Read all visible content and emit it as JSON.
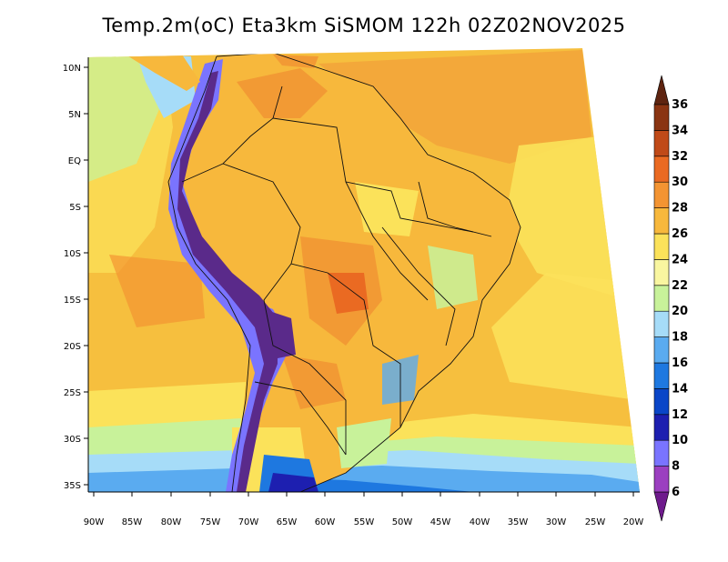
{
  "title": "Temp.2m(oC) Eta3km SiSMOM 122h 02Z02NOV2025",
  "map": {
    "lat_labels": [
      "10N",
      "5N",
      "EQ",
      "5S",
      "10S",
      "15S",
      "20S",
      "25S",
      "30S",
      "35S"
    ],
    "lon_labels": [
      "90W",
      "85W",
      "80W",
      "75W",
      "70W",
      "65W",
      "60W",
      "55W",
      "50W",
      "45W",
      "40W",
      "35W",
      "30W",
      "25W",
      "20W"
    ],
    "lat_range": [
      -38,
      11
    ],
    "lon_range": [
      -91,
      -20
    ]
  },
  "colorbar": {
    "unit": "oC",
    "levels": [
      "6",
      "8",
      "10",
      "12",
      "14",
      "16",
      "18",
      "20",
      "22",
      "24",
      "26",
      "28",
      "30",
      "32",
      "34",
      "36"
    ],
    "colors": [
      "#6e1a8c",
      "#9b3fc0",
      "#7a74ff",
      "#1d1fb0",
      "#0a46c8",
      "#1e78e0",
      "#5aabf0",
      "#a6dcf8",
      "#c8f29a",
      "#f9f6a0",
      "#fbe25a",
      "#f7b83c",
      "#f39432",
      "#ea6a22",
      "#c04a18",
      "#8a3412",
      "#5e2410"
    ]
  },
  "colors": {
    "ocean_base": "#f6bf3e",
    "land_hot": "#f29a34",
    "andes_cold": "#5a2a8a"
  }
}
